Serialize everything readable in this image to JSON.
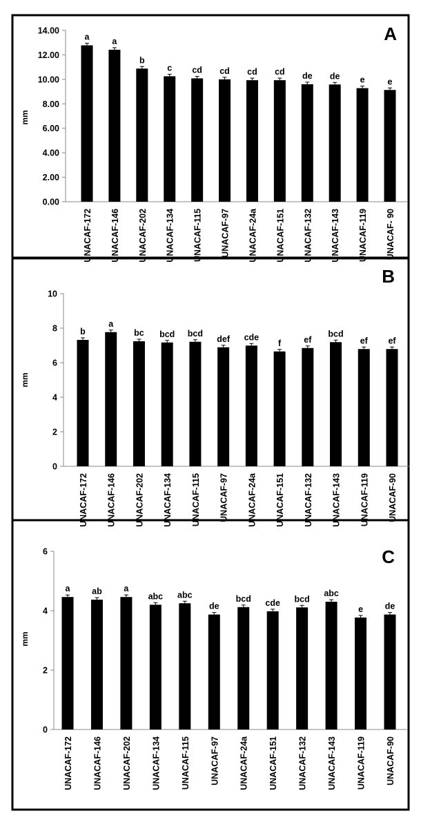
{
  "chart_data": [
    {
      "type": "bar",
      "panel_label": "A",
      "ylabel": "mm",
      "ylim": [
        0,
        14
      ],
      "yticks": [
        "0.00",
        "2.00",
        "4.00",
        "6.00",
        "8.00",
        "10.00",
        "12.00",
        "14.00"
      ],
      "categories": [
        "UNACAF-172",
        "UNACAF-146",
        "UNACAF-202",
        "UNACAF-134",
        "UNACAF-115",
        "UNACAF-97",
        "UNACAF-24a",
        "UNACAF-151",
        "UNACAF-132",
        "UNACAF-143",
        "UNACAF-119",
        "UNACAF- 90"
      ],
      "values": [
        12.78,
        12.42,
        10.88,
        10.25,
        10.08,
        10.0,
        9.93,
        9.93,
        9.6,
        9.58,
        9.28,
        9.13
      ],
      "letters": [
        "a",
        "a",
        "b",
        "c",
        "cd",
        "cd",
        "cd",
        "cd",
        "de",
        "de",
        "e",
        "e"
      ],
      "error_bars": true,
      "bar_color": "#000000"
    },
    {
      "type": "bar",
      "panel_label": "B",
      "ylabel": "mm",
      "ylim": [
        0,
        10
      ],
      "yticks": [
        "0",
        "2",
        "4",
        "6",
        "8",
        "10"
      ],
      "categories": [
        "UNACAF-172",
        "UNACAF-146",
        "UNACAF-202",
        "UNACAF-134",
        "UNACAF-115",
        "UNACAF-97",
        "UNACAF-24a",
        "UNACAF-151",
        "UNACAF-132",
        "UNACAF-143",
        "UNACAF-119",
        "UNACAF-90"
      ],
      "values": [
        7.32,
        7.77,
        7.24,
        7.17,
        7.21,
        6.89,
        6.99,
        6.65,
        6.85,
        7.19,
        6.79,
        6.79
      ],
      "letters": [
        "b",
        "a",
        "bc",
        "bcd",
        "bcd",
        "def",
        "cde",
        "f",
        "ef",
        "bcd",
        "ef",
        "ef"
      ],
      "error_bars": true,
      "bar_color": "#000000"
    },
    {
      "type": "bar",
      "panel_label": "C",
      "ylabel": "mm",
      "ylim": [
        0,
        6
      ],
      "yticks": [
        "0",
        "2",
        "4",
        "6"
      ],
      "categories": [
        "UNACAF-172",
        "UNACAF-146",
        "UNACAF-202",
        "UNACAF-134",
        "UNACAF-115",
        "UNACAF-97",
        "UNACAF-24a",
        "UNACAF-151",
        "UNACAF-132",
        "UNACAF-143",
        "UNACAF-119",
        "UNACAF-90"
      ],
      "values": [
        4.46,
        4.37,
        4.46,
        4.2,
        4.25,
        3.87,
        4.12,
        3.98,
        4.11,
        4.3,
        3.77,
        3.87
      ],
      "letters": [
        "a",
        "ab",
        "a",
        "abc",
        "abc",
        "de",
        "bcd",
        "cde",
        "bcd",
        "abc",
        "e",
        "de"
      ],
      "error_bars": true,
      "bar_color": "#000000"
    }
  ]
}
